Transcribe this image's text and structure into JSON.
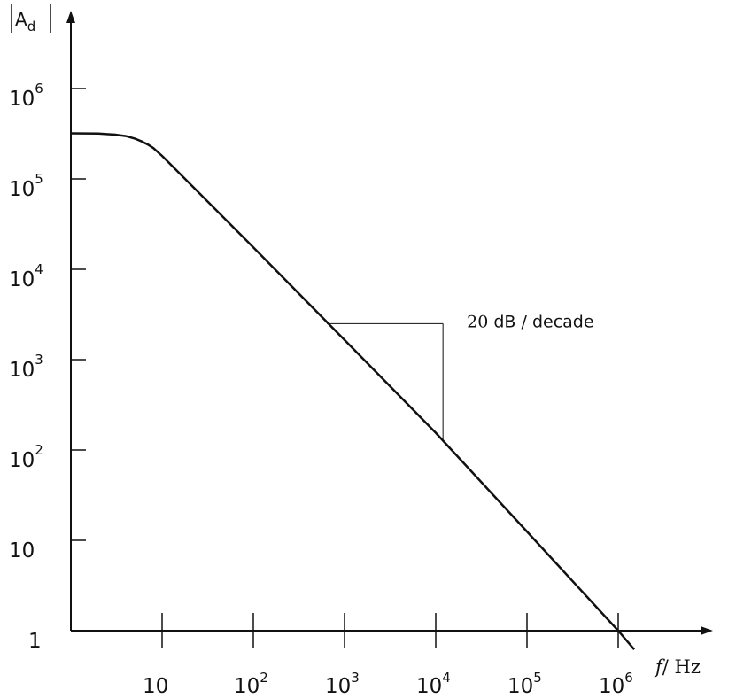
{
  "chart_data": {
    "type": "line",
    "scale": {
      "x": "log",
      "y": "log"
    },
    "ylabel": {
      "main": "A",
      "sub": "d"
    },
    "xlabel": {
      "var": "f",
      "unit": "/ Hz"
    },
    "xlim": [
      1,
      2000000
    ],
    "ylim": [
      1,
      3000000
    ],
    "x_ticks": [
      {
        "value": 10,
        "base": "10",
        "exp": ""
      },
      {
        "value": 100,
        "base": "10",
        "exp": "2"
      },
      {
        "value": 1000,
        "base": "10",
        "exp": "3"
      },
      {
        "value": 10000,
        "base": "10",
        "exp": "4"
      },
      {
        "value": 100000,
        "base": "10",
        "exp": "5"
      },
      {
        "value": 1000000,
        "base": "10",
        "exp": "6"
      }
    ],
    "y_ticks": [
      {
        "value": 1,
        "base": "1",
        "exp": ""
      },
      {
        "value": 10,
        "base": "10",
        "exp": ""
      },
      {
        "value": 100,
        "base": "10",
        "exp": "2"
      },
      {
        "value": 1000,
        "base": "10",
        "exp": "3"
      },
      {
        "value": 10000,
        "base": "10",
        "exp": "4"
      },
      {
        "value": 100000,
        "base": "10",
        "exp": "5"
      },
      {
        "value": 1000000,
        "base": "10",
        "exp": "6"
      }
    ],
    "series": [
      {
        "x": [
          1,
          2,
          3,
          4,
          5,
          6,
          7,
          8,
          10,
          100,
          1000,
          10000,
          100000,
          1000000,
          1500000
        ],
        "y": [
          320000,
          318000,
          310000,
          298000,
          280000,
          260000,
          240000,
          220000,
          180000,
          17500,
          1650,
          155,
          12.5,
          1,
          0.62
        ]
      }
    ],
    "annotations": [
      {
        "num": "20",
        "text": " dB / decade",
        "x_from": 1000,
        "x_to": 12000,
        "y_at": 2500
      }
    ]
  }
}
